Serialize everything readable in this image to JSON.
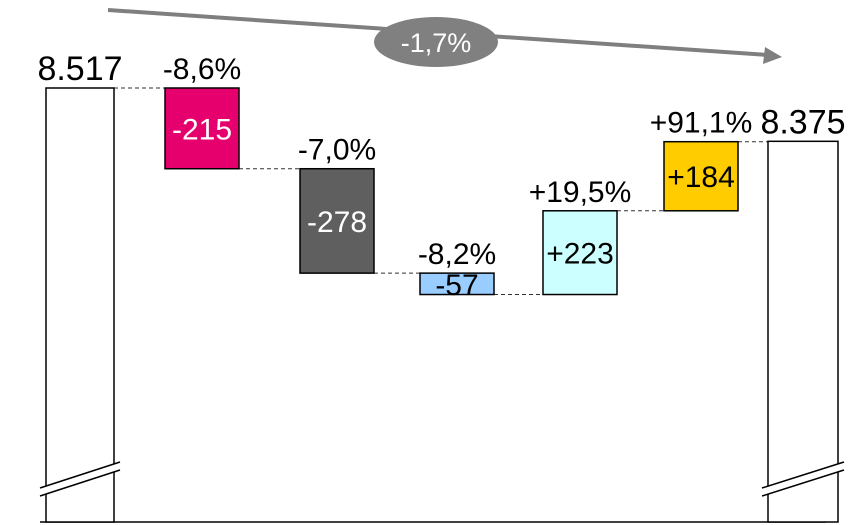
{
  "chart_data": {
    "type": "waterfall",
    "start": {
      "value": 8517,
      "label": "8.517"
    },
    "end": {
      "value": 8375,
      "label": "8.375"
    },
    "total_change": {
      "label": "-1,7%"
    },
    "steps": [
      {
        "value": -215,
        "label": "-215",
        "pct": "-8,6%",
        "color": "#e6006e",
        "text_color": "#ffffff"
      },
      {
        "value": -278,
        "label": "-278",
        "pct": "-7,0%",
        "color": "#5f5f5f",
        "text_color": "#ffffff"
      },
      {
        "value": -57,
        "label": "-57",
        "pct": "-8,2%",
        "color": "#99ccff",
        "text_color": "#000000"
      },
      {
        "value": 223,
        "label": "+223",
        "pct": "+19,5%",
        "color": "#ccffff",
        "text_color": "#000000"
      },
      {
        "value": 184,
        "label": "+184",
        "pct": "+91,1%",
        "color": "#ffcc00",
        "text_color": "#000000"
      }
    ],
    "axis_break": true,
    "colors": {
      "arrow": "#7f7f7f",
      "bubble": "#808080",
      "bubble_text": "#ffffff",
      "outline": "#000000"
    }
  }
}
